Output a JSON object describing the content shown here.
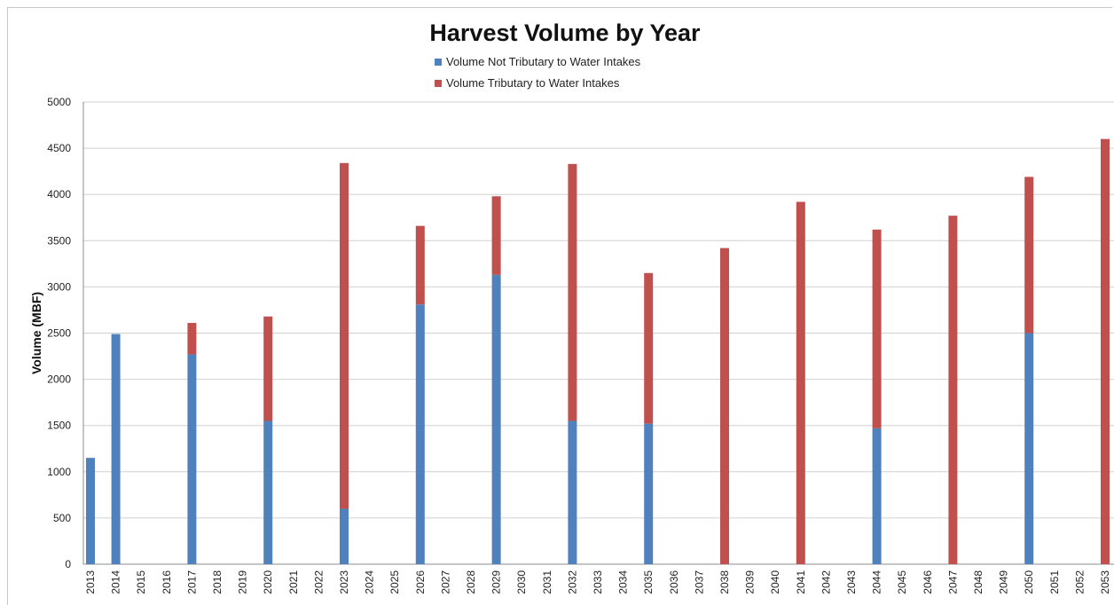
{
  "chart_data": {
    "type": "bar",
    "stacked": true,
    "title": "Harvest Volume by Year",
    "ylabel": "Volume (MBF)",
    "xlabel": "",
    "ylim": [
      0,
      5000
    ],
    "yticks": [
      0,
      500,
      1000,
      1500,
      2000,
      2500,
      3000,
      3500,
      4000,
      4500,
      5000
    ],
    "grid": true,
    "legend_position": "top",
    "categories": [
      "2013",
      "2014",
      "2015",
      "2016",
      "2017",
      "2018",
      "2019",
      "2020",
      "2021",
      "2022",
      "2023",
      "2024",
      "2025",
      "2026",
      "2027",
      "2028",
      "2029",
      "2030",
      "2031",
      "2032",
      "2033",
      "2034",
      "2035",
      "2036",
      "2037",
      "2038",
      "2039",
      "2040",
      "2041",
      "2042",
      "2043",
      "2044",
      "2045",
      "2046",
      "2047",
      "2048",
      "2049",
      "2050",
      "2051",
      "2052",
      "2053"
    ],
    "series": [
      {
        "name": "Volume Not Tributary to Water Intakes",
        "color": "#4f81bd",
        "values": [
          1150,
          2490,
          0,
          0,
          2270,
          0,
          0,
          1550,
          0,
          0,
          600,
          0,
          0,
          2810,
          0,
          0,
          3130,
          0,
          0,
          1550,
          0,
          0,
          1520,
          0,
          0,
          0,
          0,
          0,
          0,
          0,
          0,
          1470,
          0,
          0,
          0,
          0,
          0,
          2500,
          0,
          0,
          0
        ]
      },
      {
        "name": "Volume Tributary to Water Intakes",
        "color": "#c0504d",
        "values": [
          0,
          0,
          0,
          0,
          340,
          0,
          0,
          1130,
          0,
          0,
          3740,
          0,
          0,
          850,
          0,
          0,
          850,
          0,
          0,
          2780,
          0,
          0,
          1630,
          0,
          0,
          3420,
          0,
          0,
          3920,
          0,
          0,
          2150,
          0,
          0,
          3770,
          0,
          0,
          1690,
          0,
          0,
          4600
        ]
      }
    ]
  }
}
